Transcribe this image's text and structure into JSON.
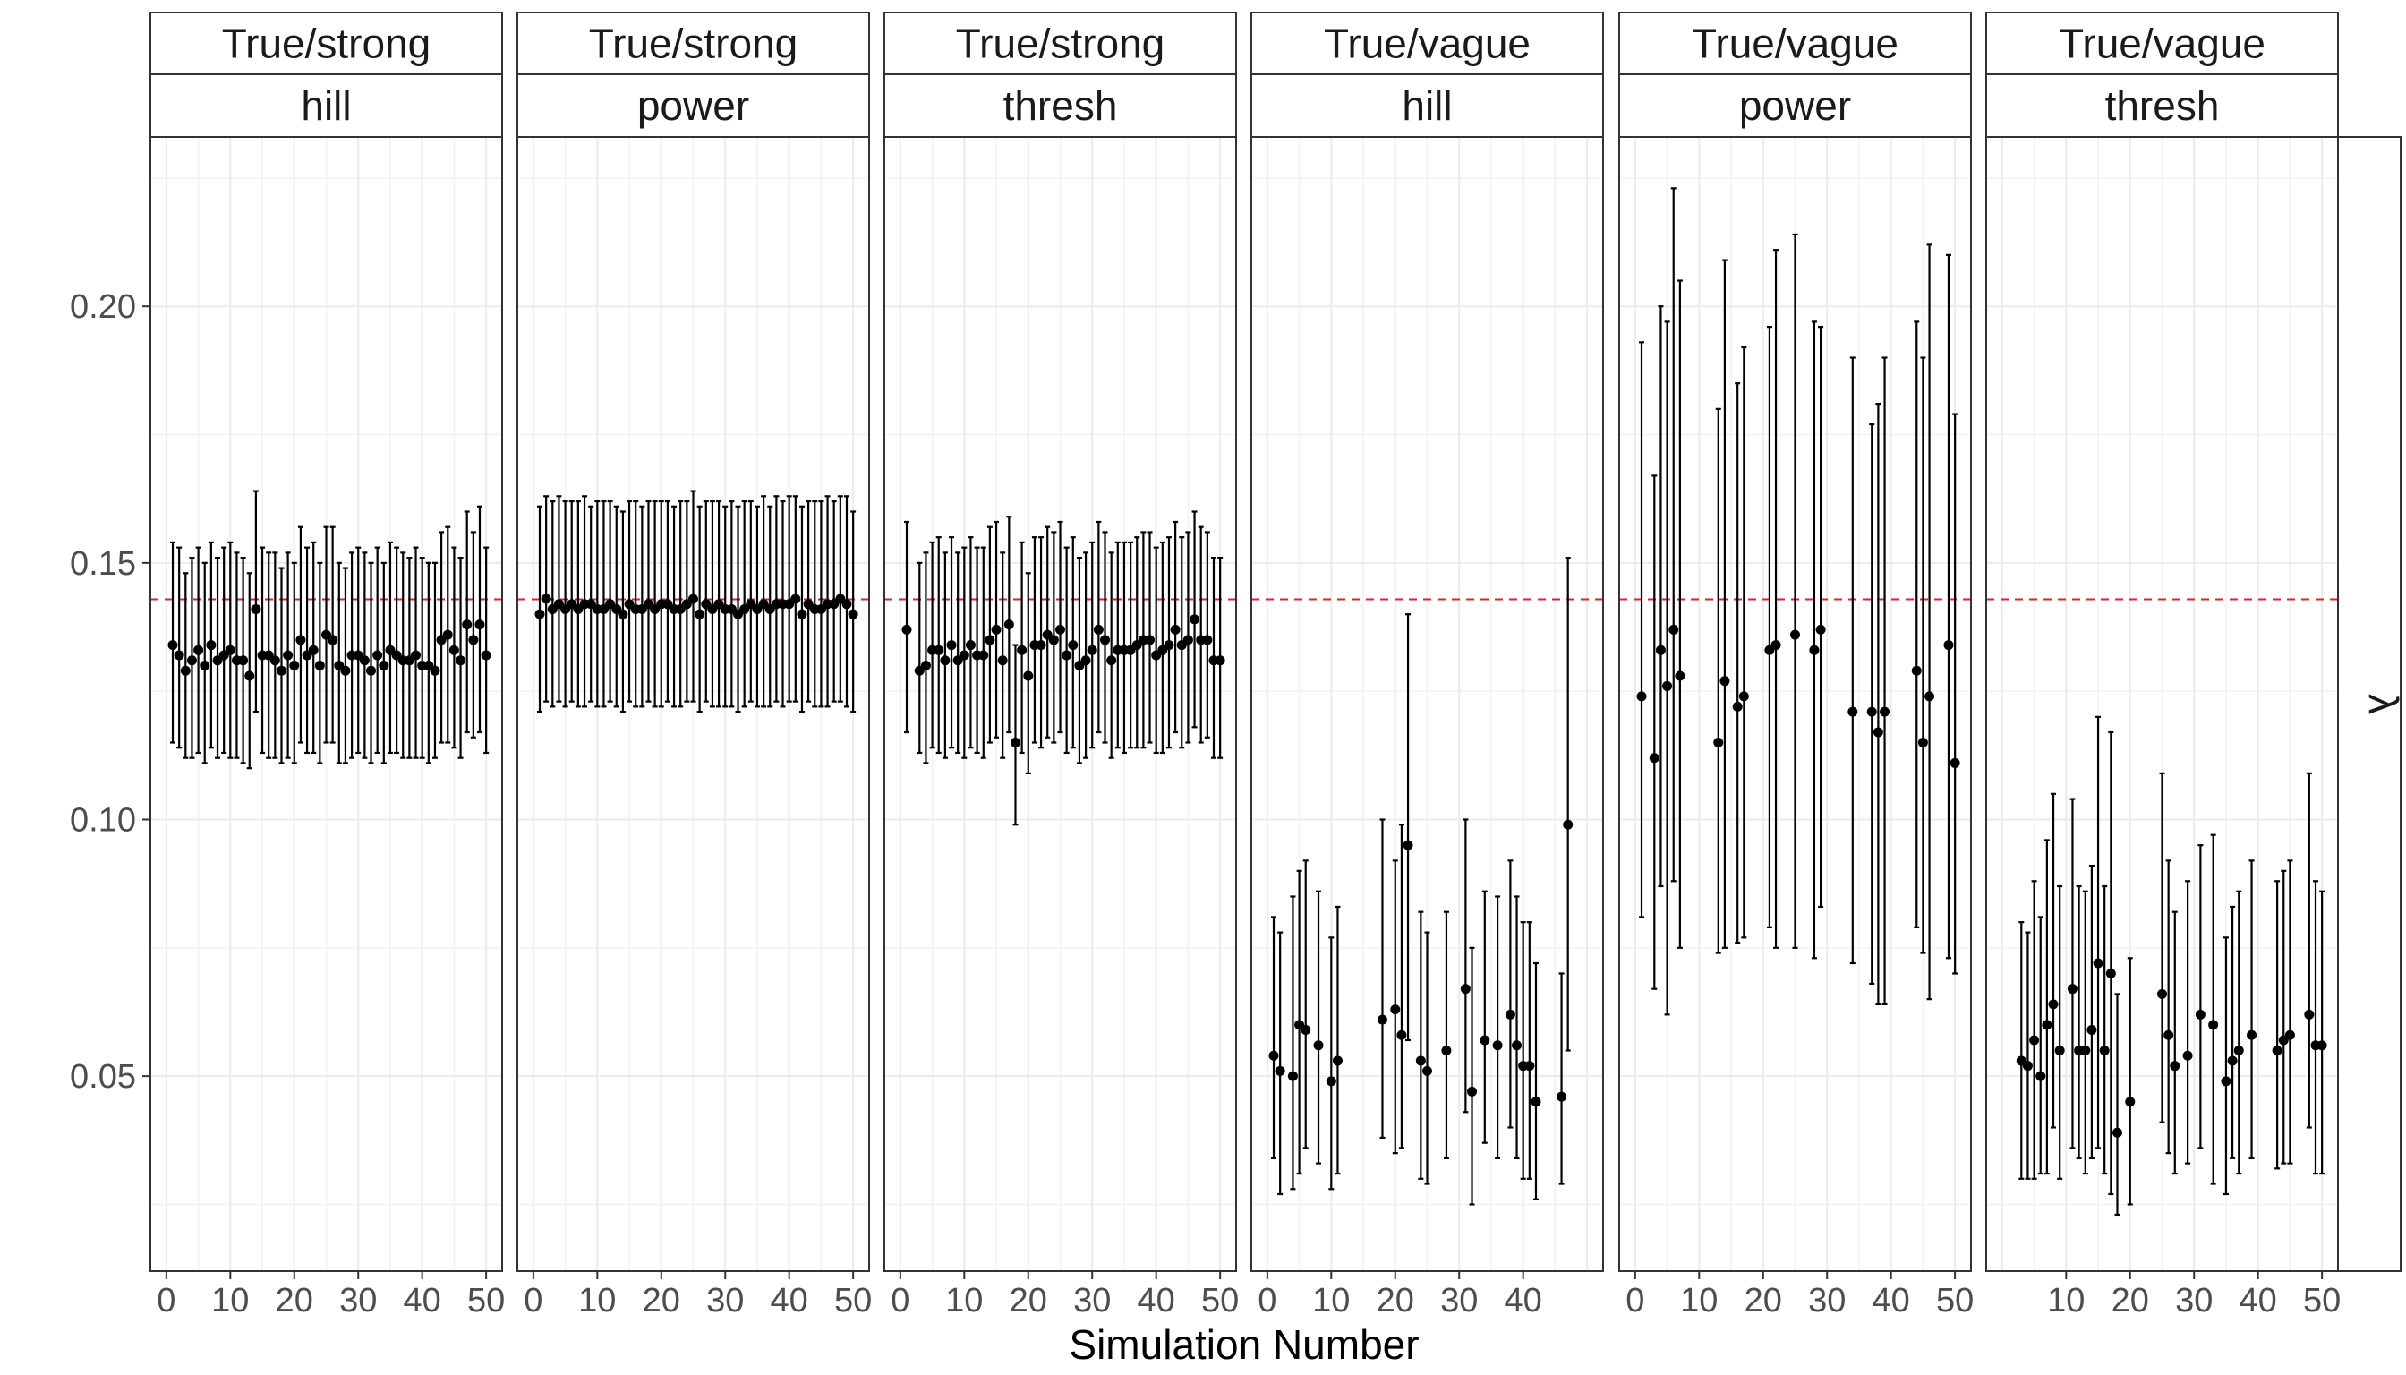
{
  "chart_data": {
    "type": "scatter",
    "subtype": "point-range faceted plot",
    "xlabel": "Simulation Number",
    "ylabel": "",
    "ylim": [
      0.012,
      0.233
    ],
    "y_ticks": [
      0.05,
      0.1,
      0.15,
      0.2
    ],
    "y_tick_labels": [
      "0.05",
      "0.10",
      "0.15",
      "0.20"
    ],
    "reference_line": {
      "y": 0.1429,
      "color": "#d62728",
      "style": "dashed"
    },
    "right_strip_label": "λ",
    "grid": true,
    "panels": [
      {
        "strip_top": "True/strong",
        "strip_bottom": "hill",
        "x_ticks": [
          0,
          10,
          20,
          30,
          40,
          50
        ],
        "x_tick_labels": [
          "0",
          "10",
          "20",
          "30",
          "40",
          "50"
        ],
        "x": [
          1,
          2,
          3,
          4,
          5,
          6,
          7,
          8,
          9,
          10,
          11,
          12,
          13,
          14,
          15,
          16,
          17,
          18,
          19,
          20,
          21,
          22,
          23,
          24,
          25,
          26,
          27,
          28,
          29,
          30,
          31,
          32,
          33,
          34,
          35,
          36,
          37,
          38,
          39,
          40,
          41,
          42,
          43,
          44,
          45,
          46,
          47,
          48,
          49,
          50
        ],
        "y": [
          0.134,
          0.132,
          0.129,
          0.131,
          0.133,
          0.13,
          0.134,
          0.131,
          0.132,
          0.133,
          0.131,
          0.131,
          0.128,
          0.141,
          0.132,
          0.132,
          0.131,
          0.129,
          0.132,
          0.13,
          0.135,
          0.132,
          0.133,
          0.13,
          0.136,
          0.135,
          0.13,
          0.129,
          0.132,
          0.132,
          0.131,
          0.129,
          0.132,
          0.13,
          0.133,
          0.132,
          0.131,
          0.131,
          0.132,
          0.13,
          0.13,
          0.129,
          0.135,
          0.136,
          0.133,
          0.131,
          0.138,
          0.135,
          0.138,
          0.132
        ],
        "ymin": [
          0.115,
          0.114,
          0.112,
          0.112,
          0.113,
          0.111,
          0.114,
          0.112,
          0.113,
          0.112,
          0.112,
          0.111,
          0.11,
          0.121,
          0.113,
          0.112,
          0.112,
          0.111,
          0.112,
          0.111,
          0.115,
          0.113,
          0.113,
          0.111,
          0.115,
          0.115,
          0.111,
          0.111,
          0.112,
          0.113,
          0.112,
          0.111,
          0.113,
          0.111,
          0.113,
          0.113,
          0.112,
          0.112,
          0.112,
          0.112,
          0.111,
          0.112,
          0.115,
          0.115,
          0.114,
          0.112,
          0.117,
          0.116,
          0.117,
          0.113
        ],
        "ymax": [
          0.154,
          0.153,
          0.148,
          0.151,
          0.153,
          0.15,
          0.154,
          0.151,
          0.153,
          0.154,
          0.152,
          0.151,
          0.148,
          0.164,
          0.153,
          0.152,
          0.152,
          0.149,
          0.152,
          0.15,
          0.157,
          0.153,
          0.154,
          0.15,
          0.157,
          0.157,
          0.15,
          0.149,
          0.152,
          0.153,
          0.152,
          0.15,
          0.153,
          0.15,
          0.154,
          0.153,
          0.152,
          0.151,
          0.153,
          0.151,
          0.15,
          0.15,
          0.156,
          0.157,
          0.153,
          0.151,
          0.16,
          0.156,
          0.161,
          0.153
        ]
      },
      {
        "strip_top": "True/strong",
        "strip_bottom": "power",
        "x_ticks": [
          0,
          10,
          20,
          30,
          40,
          50
        ],
        "x_tick_labels": [
          "0",
          "10",
          "20",
          "30",
          "40",
          "50"
        ],
        "x": [
          1,
          2,
          3,
          4,
          5,
          6,
          7,
          8,
          9,
          10,
          11,
          12,
          13,
          14,
          15,
          16,
          17,
          18,
          19,
          20,
          21,
          22,
          23,
          24,
          25,
          26,
          27,
          28,
          29,
          30,
          31,
          32,
          33,
          34,
          35,
          36,
          37,
          38,
          39,
          40,
          41,
          42,
          43,
          44,
          45,
          46,
          47,
          48,
          49,
          50
        ],
        "y": [
          0.14,
          0.143,
          0.141,
          0.142,
          0.141,
          0.142,
          0.141,
          0.142,
          0.142,
          0.141,
          0.141,
          0.142,
          0.141,
          0.14,
          0.142,
          0.141,
          0.141,
          0.142,
          0.141,
          0.142,
          0.142,
          0.141,
          0.141,
          0.142,
          0.143,
          0.14,
          0.142,
          0.141,
          0.142,
          0.141,
          0.141,
          0.14,
          0.141,
          0.142,
          0.141,
          0.142,
          0.141,
          0.142,
          0.142,
          0.142,
          0.143,
          0.14,
          0.142,
          0.141,
          0.141,
          0.142,
          0.142,
          0.143,
          0.142,
          0.14
        ],
        "ymin": [
          0.121,
          0.123,
          0.122,
          0.123,
          0.122,
          0.123,
          0.122,
          0.122,
          0.123,
          0.122,
          0.122,
          0.123,
          0.122,
          0.121,
          0.123,
          0.122,
          0.122,
          0.123,
          0.122,
          0.122,
          0.123,
          0.122,
          0.122,
          0.123,
          0.123,
          0.121,
          0.123,
          0.122,
          0.122,
          0.122,
          0.122,
          0.121,
          0.122,
          0.123,
          0.122,
          0.122,
          0.122,
          0.123,
          0.122,
          0.123,
          0.123,
          0.121,
          0.123,
          0.122,
          0.122,
          0.122,
          0.123,
          0.123,
          0.122,
          0.121
        ],
        "ymax": [
          0.161,
          0.163,
          0.162,
          0.163,
          0.162,
          0.162,
          0.162,
          0.163,
          0.161,
          0.162,
          0.162,
          0.162,
          0.161,
          0.16,
          0.162,
          0.162,
          0.161,
          0.162,
          0.162,
          0.162,
          0.162,
          0.161,
          0.162,
          0.162,
          0.164,
          0.161,
          0.162,
          0.162,
          0.162,
          0.161,
          0.162,
          0.161,
          0.162,
          0.162,
          0.161,
          0.163,
          0.161,
          0.163,
          0.162,
          0.163,
          0.163,
          0.161,
          0.162,
          0.162,
          0.162,
          0.163,
          0.162,
          0.163,
          0.163,
          0.16
        ]
      },
      {
        "strip_top": "True/strong",
        "strip_bottom": "thresh",
        "x_ticks": [
          0,
          10,
          20,
          30,
          40,
          50
        ],
        "x_tick_labels": [
          "0",
          "10",
          "20",
          "30",
          "40",
          "50"
        ],
        "x": [
          1,
          3,
          4,
          5,
          6,
          7,
          8,
          9,
          10,
          11,
          12,
          13,
          14,
          15,
          16,
          17,
          18,
          19,
          20,
          21,
          22,
          23,
          24,
          25,
          26,
          27,
          28,
          29,
          30,
          31,
          32,
          33,
          34,
          35,
          36,
          37,
          38,
          39,
          40,
          41,
          42,
          43,
          44,
          45,
          46,
          47,
          48,
          49,
          50
        ],
        "y": [
          0.137,
          0.129,
          0.13,
          0.133,
          0.133,
          0.131,
          0.134,
          0.131,
          0.132,
          0.134,
          0.132,
          0.132,
          0.135,
          0.137,
          0.131,
          0.138,
          0.115,
          0.133,
          0.128,
          0.134,
          0.134,
          0.136,
          0.135,
          0.137,
          0.132,
          0.134,
          0.13,
          0.131,
          0.133,
          0.137,
          0.135,
          0.131,
          0.133,
          0.133,
          0.133,
          0.134,
          0.135,
          0.135,
          0.132,
          0.133,
          0.134,
          0.137,
          0.134,
          0.135,
          0.139,
          0.135,
          0.135,
          0.131,
          0.131
        ],
        "ymin": [
          0.117,
          0.113,
          0.111,
          0.114,
          0.113,
          0.112,
          0.114,
          0.113,
          0.112,
          0.114,
          0.113,
          0.112,
          0.115,
          0.116,
          0.112,
          0.117,
          0.099,
          0.113,
          0.109,
          0.115,
          0.114,
          0.116,
          0.115,
          0.117,
          0.113,
          0.114,
          0.111,
          0.112,
          0.114,
          0.117,
          0.115,
          0.112,
          0.114,
          0.113,
          0.114,
          0.114,
          0.114,
          0.115,
          0.113,
          0.113,
          0.114,
          0.117,
          0.114,
          0.115,
          0.118,
          0.115,
          0.116,
          0.112,
          0.112
        ],
        "ymax": [
          0.158,
          0.15,
          0.152,
          0.154,
          0.155,
          0.152,
          0.155,
          0.152,
          0.153,
          0.155,
          0.153,
          0.153,
          0.157,
          0.158,
          0.152,
          0.159,
          0.134,
          0.154,
          0.148,
          0.155,
          0.155,
          0.157,
          0.156,
          0.158,
          0.153,
          0.155,
          0.151,
          0.152,
          0.154,
          0.158,
          0.156,
          0.152,
          0.154,
          0.154,
          0.154,
          0.155,
          0.156,
          0.156,
          0.153,
          0.154,
          0.155,
          0.158,
          0.155,
          0.156,
          0.16,
          0.157,
          0.156,
          0.151,
          0.151
        ]
      },
      {
        "strip_top": "True/vague",
        "strip_bottom": "hill",
        "x_ticks": [
          0,
          10,
          20,
          30,
          40
        ],
        "x_tick_labels": [
          "0",
          "10",
          "20",
          "30",
          "40"
        ],
        "x": [
          1,
          2,
          4,
          5,
          6,
          8,
          10,
          11,
          18,
          20,
          21,
          22,
          24,
          25,
          28,
          31,
          32,
          34,
          36,
          38,
          39,
          40,
          41,
          42,
          46,
          47
        ],
        "y": [
          0.054,
          0.051,
          0.05,
          0.06,
          0.059,
          0.056,
          0.049,
          0.053,
          0.061,
          0.063,
          0.058,
          0.095,
          0.053,
          0.051,
          0.055,
          0.067,
          0.047,
          0.057,
          0.056,
          0.062,
          0.056,
          0.052,
          0.052,
          0.045,
          0.046,
          0.099
        ],
        "ymin": [
          0.034,
          0.027,
          0.028,
          0.031,
          0.036,
          0.033,
          0.028,
          0.031,
          0.038,
          0.035,
          0.036,
          0.057,
          0.03,
          0.029,
          0.034,
          0.043,
          0.025,
          0.037,
          0.034,
          0.04,
          0.034,
          0.03,
          0.03,
          0.026,
          0.029,
          0.055
        ],
        "ymax": [
          0.081,
          0.078,
          0.085,
          0.09,
          0.092,
          0.086,
          0.077,
          0.083,
          0.1,
          0.092,
          0.099,
          0.14,
          0.082,
          0.078,
          0.082,
          0.1,
          0.075,
          0.086,
          0.085,
          0.092,
          0.085,
          0.08,
          0.08,
          0.072,
          0.07,
          0.151
        ]
      },
      {
        "strip_top": "True/vague",
        "strip_bottom": "power",
        "x_ticks": [
          0,
          10,
          20,
          30,
          40,
          50
        ],
        "x_tick_labels": [
          "0",
          "10",
          "20",
          "30",
          "40",
          "50"
        ],
        "x": [
          1,
          3,
          4,
          5,
          6,
          7,
          13,
          14,
          16,
          17,
          21,
          22,
          25,
          28,
          29,
          34,
          37,
          38,
          39,
          44,
          45,
          46,
          49,
          50
        ],
        "y": [
          0.124,
          0.112,
          0.133,
          0.126,
          0.137,
          0.128,
          0.115,
          0.127,
          0.122,
          0.124,
          0.133,
          0.134,
          0.136,
          0.133,
          0.137,
          0.121,
          0.121,
          0.117,
          0.121,
          0.129,
          0.115,
          0.124,
          0.134,
          0.111
        ],
        "ymin": [
          0.081,
          0.067,
          0.087,
          0.062,
          0.088,
          0.075,
          0.074,
          0.075,
          0.076,
          0.077,
          0.079,
          0.075,
          0.075,
          0.073,
          0.083,
          0.072,
          0.068,
          0.064,
          0.064,
          0.079,
          0.074,
          0.065,
          0.073,
          0.07
        ],
        "ymax": [
          0.193,
          0.167,
          0.2,
          0.197,
          0.223,
          0.205,
          0.18,
          0.209,
          0.185,
          0.192,
          0.196,
          0.211,
          0.214,
          0.197,
          0.196,
          0.19,
          0.177,
          0.181,
          0.19,
          0.197,
          0.19,
          0.212,
          0.21,
          0.179
        ]
      },
      {
        "strip_top": "True/vague",
        "strip_bottom": "thresh",
        "x_ticks": [
          10,
          20,
          30,
          40,
          50
        ],
        "x_tick_labels": [
          "10",
          "20",
          "30",
          "40",
          "50"
        ],
        "x": [
          3,
          4,
          5,
          6,
          7,
          8,
          9,
          11,
          12,
          13,
          14,
          15,
          16,
          17,
          18,
          20,
          25,
          26,
          27,
          29,
          31,
          33,
          35,
          36,
          37,
          39,
          43,
          44,
          45,
          48,
          49,
          50
        ],
        "y": [
          0.053,
          0.052,
          0.057,
          0.05,
          0.06,
          0.064,
          0.055,
          0.067,
          0.055,
          0.055,
          0.059,
          0.072,
          0.055,
          0.07,
          0.039,
          0.045,
          0.066,
          0.058,
          0.052,
          0.054,
          0.062,
          0.06,
          0.049,
          0.053,
          0.055,
          0.058,
          0.055,
          0.057,
          0.058,
          0.062,
          0.056,
          0.056
        ],
        "ymin": [
          0.03,
          0.03,
          0.03,
          0.031,
          0.031,
          0.04,
          0.03,
          0.036,
          0.034,
          0.031,
          0.034,
          0.036,
          0.031,
          0.027,
          0.023,
          0.025,
          0.041,
          0.035,
          0.031,
          0.033,
          0.036,
          0.029,
          0.027,
          0.034,
          0.031,
          0.034,
          0.032,
          0.033,
          0.033,
          0.04,
          0.031,
          0.031
        ],
        "ymax": [
          0.08,
          0.078,
          0.088,
          0.081,
          0.096,
          0.105,
          0.087,
          0.104,
          0.087,
          0.086,
          0.091,
          0.12,
          0.087,
          0.117,
          0.066,
          0.073,
          0.109,
          0.092,
          0.082,
          0.088,
          0.095,
          0.097,
          0.077,
          0.083,
          0.086,
          0.092,
          0.088,
          0.09,
          0.092,
          0.109,
          0.088,
          0.086
        ]
      }
    ]
  }
}
